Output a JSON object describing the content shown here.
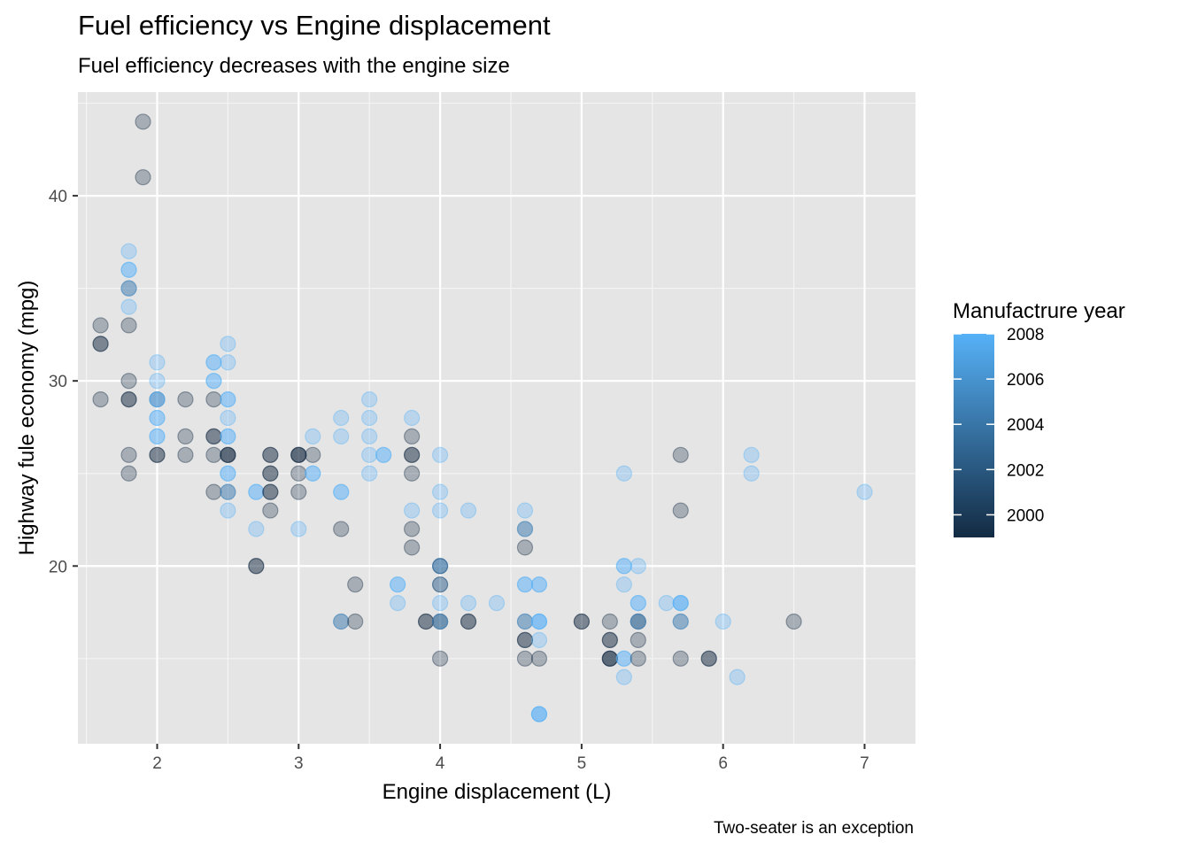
{
  "chart_data": {
    "type": "scatter",
    "title": "Fuel efficiency vs Engine displacement",
    "subtitle": "Fuel efficiency decreases with the engine size",
    "xlabel": "Engine displacement (L)",
    "ylabel": "Highway fule economy (mpg)",
    "caption": "Two-seater is an exception",
    "xlim": [
      1.44,
      7.36
    ],
    "ylim": [
      10.4,
      45.6
    ],
    "x_ticks": [
      2,
      3,
      4,
      5,
      6,
      7
    ],
    "y_ticks": [
      20,
      30,
      40
    ],
    "grid": true,
    "panel_background": "#e5e5e5",
    "point_opacity": 0.3,
    "legend": {
      "title": "Manufactrure year",
      "placement": "right",
      "breaks": [
        2000,
        2002,
        2004,
        2006,
        2008
      ],
      "range": [
        1999,
        2008
      ],
      "color_low": "#132b43",
      "color_high": "#56b1f7"
    },
    "points": [
      {
        "x": 1.9,
        "y": 44,
        "year": 1999
      },
      {
        "x": 1.9,
        "y": 41,
        "year": 1999
      },
      {
        "x": 1.8,
        "y": 37,
        "year": 2008
      },
      {
        "x": 1.8,
        "y": 36,
        "year": 2008
      },
      {
        "x": 1.8,
        "y": 36,
        "year": 2008
      },
      {
        "x": 1.8,
        "y": 35,
        "year": 1999
      },
      {
        "x": 1.8,
        "y": 35,
        "year": 2008
      },
      {
        "x": 1.8,
        "y": 34,
        "year": 2008
      },
      {
        "x": 1.8,
        "y": 33,
        "year": 1999
      },
      {
        "x": 1.8,
        "y": 30,
        "year": 1999
      },
      {
        "x": 1.8,
        "y": 29,
        "year": 1999
      },
      {
        "x": 1.8,
        "y": 29,
        "year": 1999
      },
      {
        "x": 1.8,
        "y": 26,
        "year": 1999
      },
      {
        "x": 1.8,
        "y": 25,
        "year": 1999
      },
      {
        "x": 1.6,
        "y": 33,
        "year": 1999
      },
      {
        "x": 1.6,
        "y": 32,
        "year": 1999
      },
      {
        "x": 1.6,
        "y": 32,
        "year": 1999
      },
      {
        "x": 1.6,
        "y": 29,
        "year": 1999
      },
      {
        "x": 2.0,
        "y": 31,
        "year": 2008
      },
      {
        "x": 2.0,
        "y": 30,
        "year": 2008
      },
      {
        "x": 2.0,
        "y": 29,
        "year": 1999
      },
      {
        "x": 2.0,
        "y": 29,
        "year": 2008
      },
      {
        "x": 2.0,
        "y": 29,
        "year": 2008
      },
      {
        "x": 2.0,
        "y": 28,
        "year": 2008
      },
      {
        "x": 2.0,
        "y": 28,
        "year": 2008
      },
      {
        "x": 2.0,
        "y": 27,
        "year": 2008
      },
      {
        "x": 2.0,
        "y": 27,
        "year": 2008
      },
      {
        "x": 2.0,
        "y": 26,
        "year": 1999
      },
      {
        "x": 2.0,
        "y": 26,
        "year": 1999
      },
      {
        "x": 2.2,
        "y": 29,
        "year": 1999
      },
      {
        "x": 2.2,
        "y": 27,
        "year": 1999
      },
      {
        "x": 2.2,
        "y": 26,
        "year": 1999
      },
      {
        "x": 2.4,
        "y": 31,
        "year": 2008
      },
      {
        "x": 2.4,
        "y": 31,
        "year": 2008
      },
      {
        "x": 2.4,
        "y": 30,
        "year": 2008
      },
      {
        "x": 2.4,
        "y": 30,
        "year": 2008
      },
      {
        "x": 2.4,
        "y": 29,
        "year": 1999
      },
      {
        "x": 2.4,
        "y": 27,
        "year": 1999
      },
      {
        "x": 2.4,
        "y": 27,
        "year": 1999
      },
      {
        "x": 2.4,
        "y": 26,
        "year": 1999
      },
      {
        "x": 2.4,
        "y": 24,
        "year": 1999
      },
      {
        "x": 2.5,
        "y": 32,
        "year": 2008
      },
      {
        "x": 2.5,
        "y": 31,
        "year": 2008
      },
      {
        "x": 2.5,
        "y": 29,
        "year": 2008
      },
      {
        "x": 2.5,
        "y": 29,
        "year": 2008
      },
      {
        "x": 2.5,
        "y": 28,
        "year": 2008
      },
      {
        "x": 2.5,
        "y": 27,
        "year": 2008
      },
      {
        "x": 2.5,
        "y": 27,
        "year": 2008
      },
      {
        "x": 2.5,
        "y": 26,
        "year": 1999
      },
      {
        "x": 2.5,
        "y": 26,
        "year": 1999
      },
      {
        "x": 2.5,
        "y": 26,
        "year": 1999
      },
      {
        "x": 2.5,
        "y": 25,
        "year": 2008
      },
      {
        "x": 2.5,
        "y": 25,
        "year": 2008
      },
      {
        "x": 2.5,
        "y": 24,
        "year": 1999
      },
      {
        "x": 2.5,
        "y": 24,
        "year": 2008
      },
      {
        "x": 2.5,
        "y": 23,
        "year": 2008
      },
      {
        "x": 2.7,
        "y": 24,
        "year": 2008
      },
      {
        "x": 2.7,
        "y": 24,
        "year": 2008
      },
      {
        "x": 2.7,
        "y": 22,
        "year": 2008
      },
      {
        "x": 2.7,
        "y": 20,
        "year": 1999
      },
      {
        "x": 2.7,
        "y": 20,
        "year": 1999
      },
      {
        "x": 2.8,
        "y": 26,
        "year": 1999
      },
      {
        "x": 2.8,
        "y": 26,
        "year": 1999
      },
      {
        "x": 2.8,
        "y": 25,
        "year": 1999
      },
      {
        "x": 2.8,
        "y": 25,
        "year": 1999
      },
      {
        "x": 2.8,
        "y": 24,
        "year": 1999
      },
      {
        "x": 2.8,
        "y": 24,
        "year": 1999
      },
      {
        "x": 2.8,
        "y": 23,
        "year": 1999
      },
      {
        "x": 3.0,
        "y": 26,
        "year": 1999
      },
      {
        "x": 3.0,
        "y": 26,
        "year": 1999
      },
      {
        "x": 3.0,
        "y": 26,
        "year": 1999
      },
      {
        "x": 3.0,
        "y": 25,
        "year": 1999
      },
      {
        "x": 3.0,
        "y": 24,
        "year": 1999
      },
      {
        "x": 3.0,
        "y": 22,
        "year": 2008
      },
      {
        "x": 3.1,
        "y": 27,
        "year": 2008
      },
      {
        "x": 3.1,
        "y": 26,
        "year": 1999
      },
      {
        "x": 3.1,
        "y": 25,
        "year": 2008
      },
      {
        "x": 3.1,
        "y": 25,
        "year": 2008
      },
      {
        "x": 3.3,
        "y": 28,
        "year": 2008
      },
      {
        "x": 3.3,
        "y": 27,
        "year": 2008
      },
      {
        "x": 3.3,
        "y": 24,
        "year": 2008
      },
      {
        "x": 3.3,
        "y": 24,
        "year": 2008
      },
      {
        "x": 3.3,
        "y": 22,
        "year": 1999
      },
      {
        "x": 3.3,
        "y": 17,
        "year": 1999
      },
      {
        "x": 3.3,
        "y": 17,
        "year": 2008
      },
      {
        "x": 3.4,
        "y": 19,
        "year": 1999
      },
      {
        "x": 3.4,
        "y": 17,
        "year": 1999
      },
      {
        "x": 3.5,
        "y": 29,
        "year": 2008
      },
      {
        "x": 3.5,
        "y": 28,
        "year": 2008
      },
      {
        "x": 3.5,
        "y": 27,
        "year": 2008
      },
      {
        "x": 3.5,
        "y": 26,
        "year": 2008
      },
      {
        "x": 3.5,
        "y": 25,
        "year": 2008
      },
      {
        "x": 3.6,
        "y": 26,
        "year": 2008
      },
      {
        "x": 3.6,
        "y": 26,
        "year": 2008
      },
      {
        "x": 3.7,
        "y": 19,
        "year": 2008
      },
      {
        "x": 3.7,
        "y": 19,
        "year": 2008
      },
      {
        "x": 3.7,
        "y": 18,
        "year": 2008
      },
      {
        "x": 3.8,
        "y": 28,
        "year": 2008
      },
      {
        "x": 3.8,
        "y": 27,
        "year": 1999
      },
      {
        "x": 3.8,
        "y": 26,
        "year": 1999
      },
      {
        "x": 3.8,
        "y": 26,
        "year": 1999
      },
      {
        "x": 3.8,
        "y": 25,
        "year": 1999
      },
      {
        "x": 3.8,
        "y": 23,
        "year": 2008
      },
      {
        "x": 3.8,
        "y": 22,
        "year": 1999
      },
      {
        "x": 3.8,
        "y": 21,
        "year": 1999
      },
      {
        "x": 3.9,
        "y": 17,
        "year": 1999
      },
      {
        "x": 3.9,
        "y": 17,
        "year": 1999
      },
      {
        "x": 4.0,
        "y": 26,
        "year": 2008
      },
      {
        "x": 4.0,
        "y": 24,
        "year": 2008
      },
      {
        "x": 4.0,
        "y": 23,
        "year": 2008
      },
      {
        "x": 4.0,
        "y": 20,
        "year": 2008
      },
      {
        "x": 4.0,
        "y": 20,
        "year": 2008
      },
      {
        "x": 4.0,
        "y": 20,
        "year": 1999
      },
      {
        "x": 4.0,
        "y": 19,
        "year": 2008
      },
      {
        "x": 4.0,
        "y": 19,
        "year": 1999
      },
      {
        "x": 4.0,
        "y": 18,
        "year": 2008
      },
      {
        "x": 4.0,
        "y": 17,
        "year": 1999
      },
      {
        "x": 4.0,
        "y": 17,
        "year": 1999
      },
      {
        "x": 4.0,
        "y": 17,
        "year": 2008
      },
      {
        "x": 4.0,
        "y": 15,
        "year": 1999
      },
      {
        "x": 4.2,
        "y": 23,
        "year": 2008
      },
      {
        "x": 4.2,
        "y": 18,
        "year": 2008
      },
      {
        "x": 4.2,
        "y": 17,
        "year": 1999
      },
      {
        "x": 4.2,
        "y": 17,
        "year": 1999
      },
      {
        "x": 4.4,
        "y": 18,
        "year": 2008
      },
      {
        "x": 4.6,
        "y": 23,
        "year": 2008
      },
      {
        "x": 4.6,
        "y": 22,
        "year": 1999
      },
      {
        "x": 4.6,
        "y": 22,
        "year": 2008
      },
      {
        "x": 4.6,
        "y": 21,
        "year": 1999
      },
      {
        "x": 4.6,
        "y": 19,
        "year": 2008
      },
      {
        "x": 4.6,
        "y": 19,
        "year": 2008
      },
      {
        "x": 4.6,
        "y": 17,
        "year": 1999
      },
      {
        "x": 4.6,
        "y": 17,
        "year": 2008
      },
      {
        "x": 4.6,
        "y": 16,
        "year": 1999
      },
      {
        "x": 4.6,
        "y": 16,
        "year": 1999
      },
      {
        "x": 4.6,
        "y": 15,
        "year": 1999
      },
      {
        "x": 4.7,
        "y": 19,
        "year": 2008
      },
      {
        "x": 4.7,
        "y": 19,
        "year": 2008
      },
      {
        "x": 4.7,
        "y": 17,
        "year": 2008
      },
      {
        "x": 4.7,
        "y": 17,
        "year": 2008
      },
      {
        "x": 4.7,
        "y": 17,
        "year": 2008
      },
      {
        "x": 4.7,
        "y": 16,
        "year": 2008
      },
      {
        "x": 4.7,
        "y": 15,
        "year": 1999
      },
      {
        "x": 4.7,
        "y": 12,
        "year": 2008
      },
      {
        "x": 4.7,
        "y": 12,
        "year": 2008
      },
      {
        "x": 4.7,
        "y": 12,
        "year": 2008
      },
      {
        "x": 5.0,
        "y": 17,
        "year": 1999
      },
      {
        "x": 5.0,
        "y": 17,
        "year": 1999
      },
      {
        "x": 5.2,
        "y": 17,
        "year": 1999
      },
      {
        "x": 5.2,
        "y": 16,
        "year": 1999
      },
      {
        "x": 5.2,
        "y": 16,
        "year": 1999
      },
      {
        "x": 5.2,
        "y": 15,
        "year": 1999
      },
      {
        "x": 5.2,
        "y": 15,
        "year": 1999
      },
      {
        "x": 5.2,
        "y": 15,
        "year": 1999
      },
      {
        "x": 5.3,
        "y": 25,
        "year": 2008
      },
      {
        "x": 5.3,
        "y": 20,
        "year": 2008
      },
      {
        "x": 5.3,
        "y": 20,
        "year": 2008
      },
      {
        "x": 5.3,
        "y": 19,
        "year": 2008
      },
      {
        "x": 5.3,
        "y": 15,
        "year": 2008
      },
      {
        "x": 5.3,
        "y": 15,
        "year": 2008
      },
      {
        "x": 5.3,
        "y": 14,
        "year": 2008
      },
      {
        "x": 5.4,
        "y": 20,
        "year": 2008
      },
      {
        "x": 5.4,
        "y": 18,
        "year": 2008
      },
      {
        "x": 5.4,
        "y": 18,
        "year": 2008
      },
      {
        "x": 5.4,
        "y": 17,
        "year": 1999
      },
      {
        "x": 5.4,
        "y": 17,
        "year": 1999
      },
      {
        "x": 5.4,
        "y": 17,
        "year": 2008
      },
      {
        "x": 5.4,
        "y": 16,
        "year": 1999
      },
      {
        "x": 5.4,
        "y": 15,
        "year": 1999
      },
      {
        "x": 5.6,
        "y": 18,
        "year": 2008
      },
      {
        "x": 5.7,
        "y": 26,
        "year": 1999
      },
      {
        "x": 5.7,
        "y": 23,
        "year": 1999
      },
      {
        "x": 5.7,
        "y": 18,
        "year": 2008
      },
      {
        "x": 5.7,
        "y": 18,
        "year": 2008
      },
      {
        "x": 5.7,
        "y": 18,
        "year": 2008
      },
      {
        "x": 5.7,
        "y": 17,
        "year": 1999
      },
      {
        "x": 5.7,
        "y": 17,
        "year": 2008
      },
      {
        "x": 5.7,
        "y": 15,
        "year": 1999
      },
      {
        "x": 5.9,
        "y": 15,
        "year": 1999
      },
      {
        "x": 5.9,
        "y": 15,
        "year": 1999
      },
      {
        "x": 6.0,
        "y": 17,
        "year": 2008
      },
      {
        "x": 6.1,
        "y": 14,
        "year": 2008
      },
      {
        "x": 6.2,
        "y": 26,
        "year": 2008
      },
      {
        "x": 6.2,
        "y": 25,
        "year": 2008
      },
      {
        "x": 6.5,
        "y": 17,
        "year": 1999
      },
      {
        "x": 7.0,
        "y": 24,
        "year": 2008
      }
    ]
  }
}
